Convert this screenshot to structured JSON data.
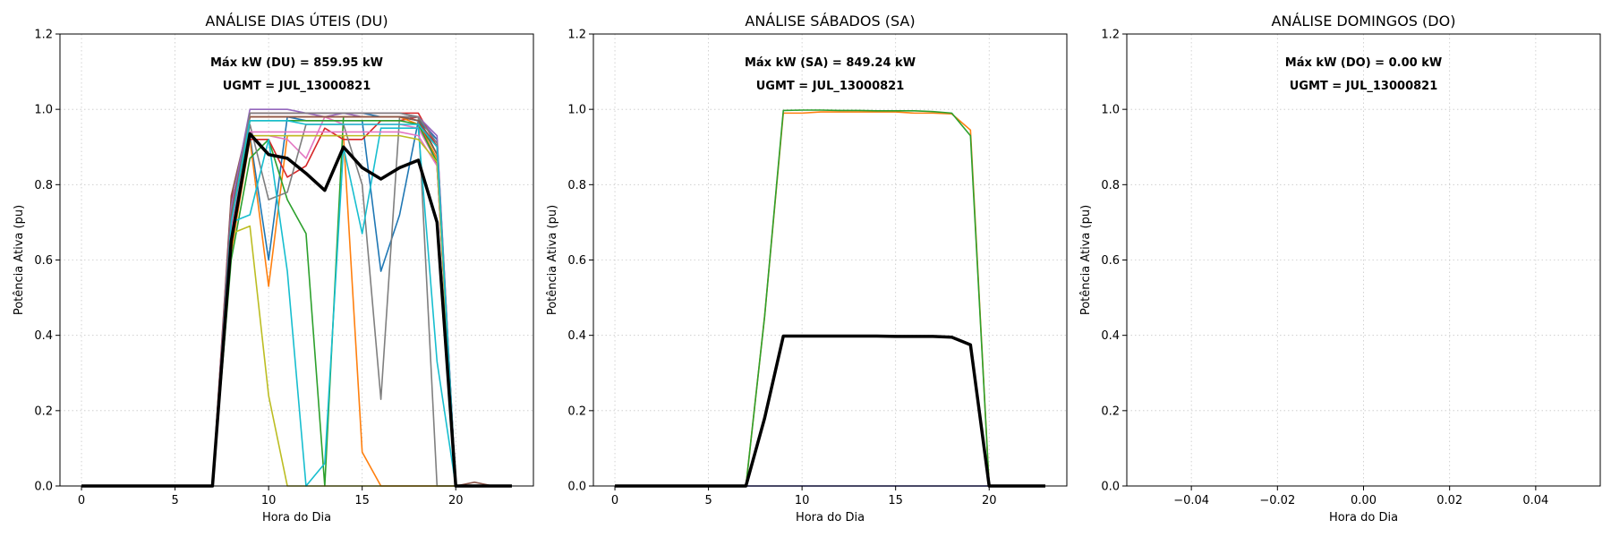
{
  "chart_data": [
    {
      "type": "line",
      "title": "ANÁLISE DIAS ÚTEIS (DU)",
      "xlabel": "Hora do Dia",
      "ylabel": "Potência Ativa (pu)",
      "xlim": [
        -1.15,
        24.15
      ],
      "ylim": [
        0,
        1.2
      ],
      "xticks": [
        0,
        5,
        10,
        15,
        20
      ],
      "xtick_labels": [
        "0",
        "5",
        "10",
        "15",
        "20"
      ],
      "yticks": [
        0,
        0.2,
        0.4,
        0.6,
        0.8,
        1.0,
        1.2
      ],
      "ytick_labels": [
        "0.0",
        "0.2",
        "0.4",
        "0.6",
        "0.8",
        "1.0",
        "1.2"
      ],
      "grid": true,
      "annotations": [
        "Máx kW (DU) = 859.95 kW",
        "UGMT = JUL_13000821"
      ],
      "x": [
        0,
        1,
        2,
        3,
        4,
        5,
        6,
        7,
        8,
        9,
        10,
        11,
        12,
        13,
        14,
        15,
        16,
        17,
        18,
        19,
        20,
        21,
        22,
        23
      ],
      "series": [
        {
          "color": "#1f77b4",
          "values": [
            0,
            0,
            0,
            0,
            0,
            0,
            0,
            0,
            0.65,
            0.93,
            0.6,
            0.98,
            0.97,
            0.97,
            0.97,
            0.97,
            0.57,
            0.72,
            0.97,
            0.85,
            0,
            0,
            0,
            0
          ]
        },
        {
          "color": "#ff7f0e",
          "values": [
            0,
            0,
            0,
            0,
            0,
            0,
            0,
            0,
            0.62,
            0.92,
            0.53,
            0.93,
            0.93,
            0.93,
            0.93,
            0.09,
            0,
            0,
            0,
            0,
            0,
            0,
            0,
            0
          ]
        },
        {
          "color": "#2ca02c",
          "values": [
            0,
            0,
            0,
            0,
            0,
            0,
            0,
            0,
            0.6,
            0.87,
            0.92,
            0.76,
            0.67,
            0,
            0.98,
            0.98,
            0.98,
            0.98,
            0.97,
            0.88,
            0,
            0,
            0,
            0
          ]
        },
        {
          "color": "#d62728",
          "values": [
            0,
            0,
            0,
            0,
            0,
            0,
            0,
            0,
            0.76,
            0.92,
            0.92,
            0.82,
            0.85,
            0.95,
            0.92,
            0.92,
            0.97,
            0.97,
            0.98,
            0.85,
            0,
            0,
            0,
            0
          ]
        },
        {
          "color": "#9467bd",
          "values": [
            0,
            0,
            0,
            0,
            0,
            0,
            0,
            0,
            0.7,
            0.99,
            0.99,
            0.99,
            0.99,
            0.98,
            0.99,
            0.98,
            0.98,
            0.98,
            0.98,
            0.92,
            0,
            0,
            0,
            0
          ]
        },
        {
          "color": "#8c564b",
          "values": [
            0,
            0,
            0,
            0,
            0,
            0,
            0,
            0,
            0.77,
            0.98,
            0.98,
            0.98,
            0.98,
            0.98,
            0.98,
            0.98,
            0.98,
            0.98,
            0.98,
            0.88,
            0,
            0.01,
            0,
            0
          ]
        },
        {
          "color": "#e377c2",
          "values": [
            0,
            0,
            0,
            0,
            0,
            0,
            0,
            0,
            0.7,
            0.93,
            0.93,
            0.92,
            0.87,
            0.98,
            0.96,
            0.96,
            0.96,
            0.96,
            0.95,
            0.86,
            0,
            0,
            0,
            0
          ]
        },
        {
          "color": "#7f7f7f",
          "values": [
            0,
            0,
            0,
            0,
            0,
            0,
            0,
            0,
            0.66,
            0.96,
            0.76,
            0.78,
            0.96,
            0.96,
            0.96,
            0.8,
            0.23,
            0.98,
            0.98,
            0,
            0,
            0,
            0,
            0
          ]
        },
        {
          "color": "#bcbd22",
          "values": [
            0,
            0,
            0,
            0,
            0,
            0,
            0,
            0,
            0.67,
            0.69,
            0.24,
            0,
            0,
            0,
            0,
            0,
            0,
            0,
            0,
            0,
            0,
            0,
            0,
            0
          ]
        },
        {
          "color": "#17becf",
          "values": [
            0,
            0,
            0,
            0,
            0,
            0,
            0,
            0,
            0.7,
            0.72,
            0.92,
            0.57,
            0,
            0.06,
            0.9,
            0.67,
            0.95,
            0.95,
            0.95,
            0.33,
            0,
            0,
            0,
            0
          ]
        },
        {
          "color": "#1f77b4",
          "values": [
            0,
            0,
            0,
            0,
            0,
            0,
            0,
            0,
            0.72,
            0.99,
            0.99,
            0.99,
            0.99,
            0.99,
            0.99,
            0.99,
            0.98,
            0.98,
            0.97,
            0.92,
            0,
            0,
            0,
            0
          ]
        },
        {
          "color": "#ff7f0e",
          "values": [
            0,
            0,
            0,
            0,
            0,
            0,
            0,
            0,
            0.7,
            0.98,
            0.98,
            0.98,
            0.98,
            0.98,
            0.98,
            0.98,
            0.98,
            0.98,
            0.96,
            0.87,
            0,
            0,
            0,
            0
          ]
        },
        {
          "color": "#2ca02c",
          "values": [
            0,
            0,
            0,
            0,
            0,
            0,
            0,
            0,
            0.68,
            0.97,
            0.97,
            0.97,
            0.97,
            0.97,
            0.97,
            0.97,
            0.97,
            0.97,
            0.96,
            0.86,
            0,
            0,
            0,
            0
          ]
        },
        {
          "color": "#d62728",
          "values": [
            0,
            0,
            0,
            0,
            0,
            0,
            0,
            0,
            0.7,
            0.99,
            0.99,
            0.99,
            0.99,
            0.99,
            0.99,
            0.99,
            0.99,
            0.99,
            0.99,
            0.9,
            0,
            0,
            0,
            0
          ]
        },
        {
          "color": "#9467bd",
          "values": [
            0,
            0,
            0,
            0,
            0,
            0,
            0,
            0,
            0.74,
            1.0,
            1.0,
            1.0,
            0.99,
            0.99,
            0.99,
            0.99,
            0.99,
            0.99,
            0.98,
            0.93,
            0,
            0,
            0,
            0
          ]
        },
        {
          "color": "#8c564b",
          "values": [
            0,
            0,
            0,
            0,
            0,
            0,
            0,
            0,
            0.72,
            0.98,
            0.98,
            0.98,
            0.98,
            0.98,
            0.98,
            0.98,
            0.98,
            0.98,
            0.97,
            0.9,
            0,
            0,
            0,
            0
          ]
        },
        {
          "color": "#e377c2",
          "values": [
            0,
            0,
            0,
            0,
            0,
            0,
            0,
            0,
            0.68,
            0.94,
            0.94,
            0.94,
            0.94,
            0.94,
            0.94,
            0.94,
            0.94,
            0.94,
            0.93,
            0.85,
            0,
            0,
            0,
            0
          ]
        },
        {
          "color": "#7f7f7f",
          "values": [
            0,
            0,
            0,
            0,
            0,
            0,
            0,
            0,
            0.7,
            0.99,
            0.99,
            0.99,
            0.99,
            0.99,
            0.99,
            0.99,
            0.99,
            0.99,
            0.98,
            0.91,
            0,
            0,
            0,
            0
          ]
        },
        {
          "color": "#bcbd22",
          "values": [
            0,
            0,
            0,
            0,
            0,
            0,
            0,
            0,
            0.66,
            0.93,
            0.93,
            0.93,
            0.93,
            0.93,
            0.93,
            0.93,
            0.93,
            0.93,
            0.92,
            0.86,
            0,
            0,
            0,
            0
          ]
        },
        {
          "color": "#17becf",
          "values": [
            0,
            0,
            0,
            0,
            0,
            0,
            0,
            0,
            0.7,
            0.97,
            0.97,
            0.97,
            0.96,
            0.96,
            0.96,
            0.96,
            0.96,
            0.96,
            0.96,
            0.9,
            0,
            0,
            0,
            0
          ]
        },
        {
          "color": "#000000",
          "values": [
            0,
            0,
            0,
            0,
            0,
            0,
            0,
            0,
            0.65,
            0.935,
            0.88,
            0.87,
            0.83,
            0.785,
            0.9,
            0.845,
            0.815,
            0.845,
            0.865,
            0.7,
            0,
            0,
            0,
            0
          ]
        }
      ]
    },
    {
      "type": "line",
      "title": "ANÁLISE SÁBADOS (SA)",
      "xlabel": "Hora do Dia",
      "ylabel": "Potência Ativa (pu)",
      "xlim": [
        -1.15,
        24.15
      ],
      "ylim": [
        0,
        1.2
      ],
      "xticks": [
        0,
        5,
        10,
        15,
        20
      ],
      "xtick_labels": [
        "0",
        "5",
        "10",
        "15",
        "20"
      ],
      "yticks": [
        0,
        0.2,
        0.4,
        0.6,
        0.8,
        1.0,
        1.2
      ],
      "ytick_labels": [
        "0.0",
        "0.2",
        "0.4",
        "0.6",
        "0.8",
        "1.0",
        "1.2"
      ],
      "grid": true,
      "annotations": [
        "Máx kW (SA) = 849.24 kW",
        "UGMT = JUL_13000821"
      ],
      "x": [
        0,
        1,
        2,
        3,
        4,
        5,
        6,
        7,
        8,
        9,
        10,
        11,
        12,
        13,
        14,
        15,
        16,
        17,
        18,
        19,
        20,
        21,
        22,
        23
      ],
      "series": [
        {
          "color": "#1f77b4",
          "values": [
            0,
            0,
            0,
            0,
            0,
            0,
            0,
            0,
            0,
            0,
            0,
            0,
            0,
            0,
            0,
            0,
            0,
            0,
            0,
            0,
            0,
            0,
            0,
            0
          ]
        },
        {
          "color": "#ff7f0e",
          "values": [
            0,
            0,
            0,
            0,
            0,
            0,
            0,
            0,
            0.45,
            0.99,
            0.99,
            0.993,
            0.993,
            0.993,
            0.993,
            0.993,
            0.99,
            0.99,
            0.988,
            0.945,
            0,
            0,
            0,
            0
          ]
        },
        {
          "color": "#2ca02c",
          "values": [
            0,
            0,
            0,
            0,
            0,
            0,
            0,
            0,
            0.45,
            0.997,
            0.998,
            0.998,
            0.997,
            0.997,
            0.996,
            0.996,
            0.996,
            0.994,
            0.99,
            0.93,
            0,
            0,
            0,
            0
          ]
        },
        {
          "color": "#9467bd",
          "values": [
            0,
            0,
            0,
            0,
            0,
            0,
            0,
            0,
            0,
            0,
            0,
            0,
            0,
            0,
            0,
            0,
            0,
            0,
            0,
            0,
            0,
            0,
            0,
            0
          ]
        },
        {
          "color": "#000000",
          "values": [
            0,
            0,
            0,
            0,
            0,
            0,
            0,
            0,
            0.18,
            0.398,
            0.398,
            0.398,
            0.398,
            0.398,
            0.398,
            0.397,
            0.397,
            0.397,
            0.395,
            0.375,
            0,
            0,
            0,
            0
          ]
        }
      ]
    },
    {
      "type": "line",
      "title": "ANÁLISE DOMINGOS (DO)",
      "xlabel": "Hora do Dia",
      "ylabel": "Potência Ativa (pu)",
      "xlim": [
        -0.055,
        0.055
      ],
      "ylim": [
        0,
        1.2
      ],
      "xticks": [
        -0.04,
        -0.02,
        0.0,
        0.02,
        0.04
      ],
      "xtick_labels": [
        "−0.04",
        "−0.02",
        "0.00",
        "0.02",
        "0.04"
      ],
      "yticks": [
        0,
        0.2,
        0.4,
        0.6,
        0.8,
        1.0,
        1.2
      ],
      "ytick_labels": [
        "0.0",
        "0.2",
        "0.4",
        "0.6",
        "0.8",
        "1.0",
        "1.2"
      ],
      "grid": true,
      "annotations": [
        "Máx kW (DO) = 0.00 kW",
        "UGMT = JUL_13000821"
      ],
      "x": [],
      "series": []
    }
  ]
}
